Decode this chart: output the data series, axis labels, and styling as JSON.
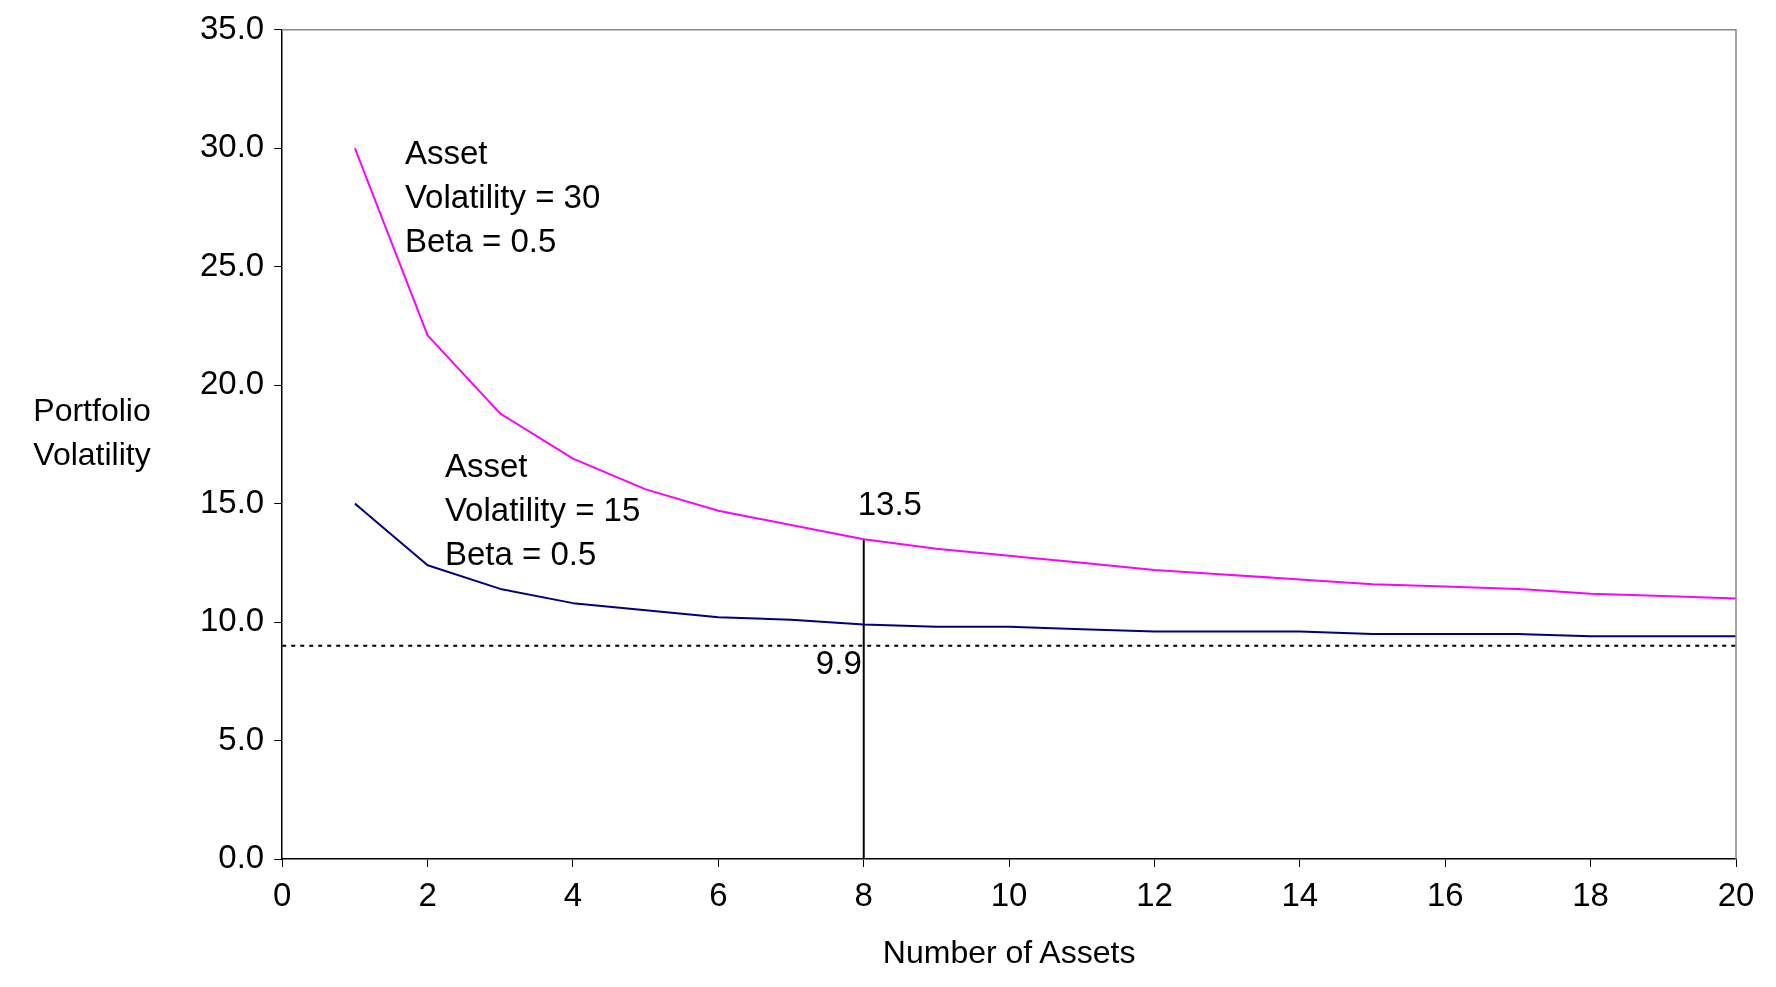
{
  "chart_data": {
    "type": "line",
    "xlabel": "Number of Assets",
    "ylabel": "Portfolio\nVolatility",
    "x": [
      1,
      2,
      3,
      4,
      5,
      6,
      7,
      8,
      9,
      10,
      11,
      12,
      13,
      14,
      15,
      16,
      17,
      18,
      19,
      20
    ],
    "series": [
      {
        "color": "#ff00ff",
        "values": [
          30.0,
          22.1,
          18.8,
          16.9,
          15.6,
          14.7,
          14.1,
          13.5,
          13.1,
          12.8,
          12.5,
          12.2,
          12.0,
          11.8,
          11.6,
          11.5,
          11.4,
          11.2,
          11.1,
          11.0
        ]
      },
      {
        "color": "#000080",
        "values": [
          15.0,
          12.4,
          11.4,
          10.8,
          10.5,
          10.2,
          10.1,
          9.9,
          9.8,
          9.8,
          9.7,
          9.6,
          9.6,
          9.6,
          9.5,
          9.5,
          9.5,
          9.4,
          9.4,
          9.4
        ]
      },
      {
        "color": "#000000",
        "x": [
          8,
          8
        ],
        "values": [
          0,
          13.5
        ]
      }
    ],
    "xlim": [
      0,
      20
    ],
    "xticks": [
      0,
      2,
      4,
      6,
      8,
      10,
      12,
      14,
      16,
      18,
      20
    ],
    "ylim": [
      0,
      35
    ],
    "yticks": [
      {
        "value": 0,
        "label": "0.0"
      },
      {
        "value": 5,
        "label": "5.0"
      },
      {
        "value": 10,
        "label": "10.0"
      },
      {
        "value": 15,
        "label": "15.0"
      },
      {
        "value": 20,
        "label": "20.0"
      },
      {
        "value": 25,
        "label": "25.0"
      },
      {
        "value": 30,
        "label": "30.0"
      },
      {
        "value": 35,
        "label": "35.0"
      }
    ],
    "ref_lines": [
      {
        "axis": "y",
        "value": 9,
        "color": "#000000",
        "line_style": "dotted"
      }
    ],
    "annotations": [
      "Asset\nVolatility = 30\nBeta = 0.5",
      "Asset\nVolatility = 15\nBeta = 0.5",
      {
        "text": "13.5",
        "x": 8,
        "y": 13.5
      },
      {
        "text": "9.9",
        "x": 8,
        "y": 9.9
      }
    ],
    "grid": false,
    "legend": false,
    "marker": "none",
    "line_style": "solid"
  }
}
